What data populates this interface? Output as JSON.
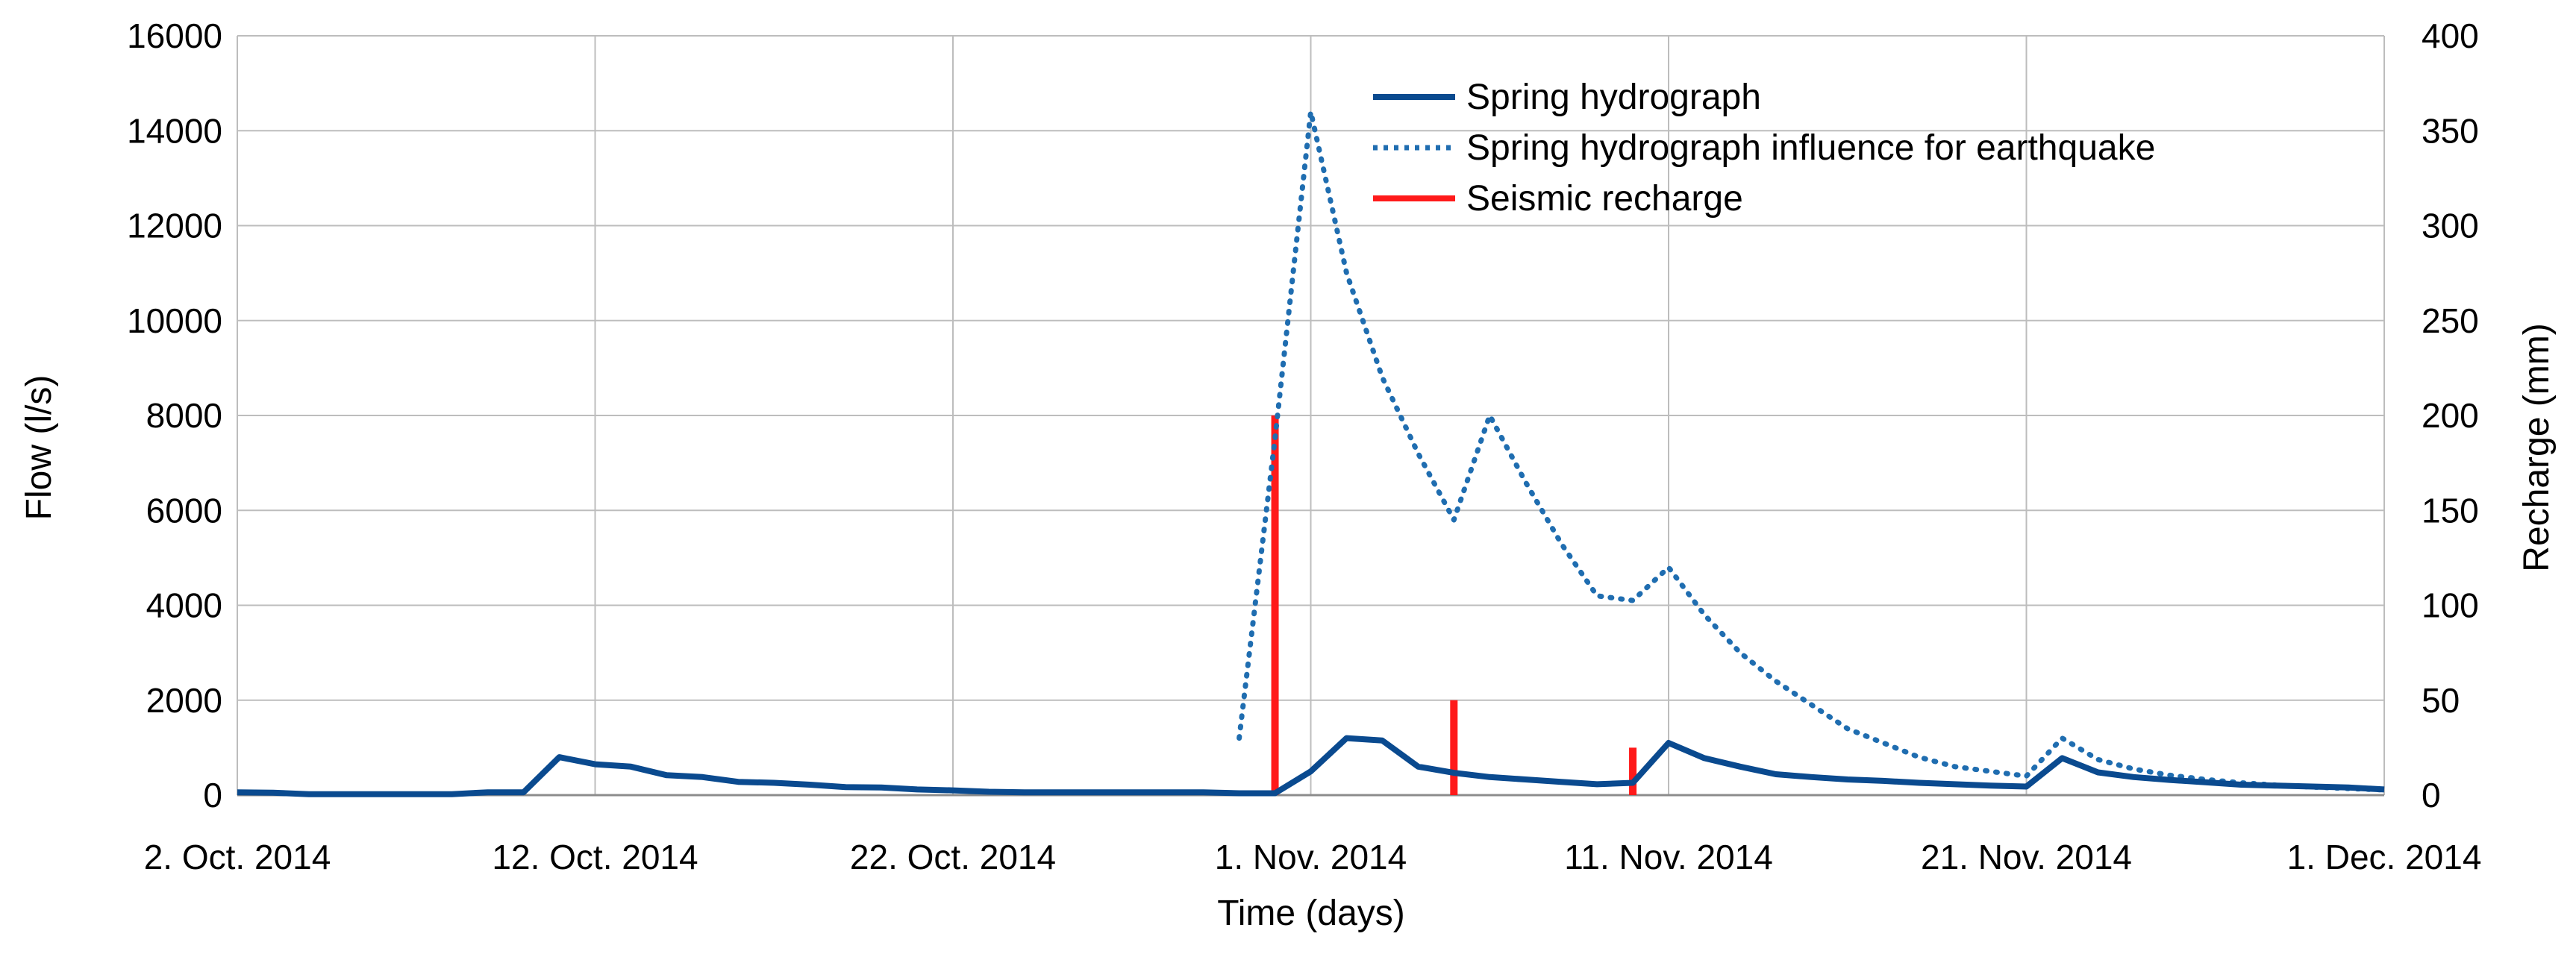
{
  "chart_data": {
    "type": "line",
    "title": "",
    "xlabel": "Time (days)",
    "ylabel": "Flow (l/s)",
    "y2label": "Recharge (mm)",
    "xlim": [
      "2014-10-02",
      "2014-12-01"
    ],
    "ylim": [
      0,
      16000
    ],
    "y2lim": [
      0,
      400
    ],
    "x_ticks": [
      "2014-10-02",
      "2014-10-12",
      "2014-10-22",
      "2014-11-01",
      "2014-11-11",
      "2014-11-21",
      "2014-12-01"
    ],
    "x_tick_labels": [
      "2. Oct. 2014",
      "12. Oct. 2014",
      "22. Oct. 2014",
      "1. Nov. 2014",
      "11. Nov. 2014",
      "21. Nov. 2014",
      "1. Dec. 2014"
    ],
    "y_ticks": [
      0,
      2000,
      4000,
      6000,
      8000,
      10000,
      12000,
      14000,
      16000
    ],
    "y2_ticks": [
      0,
      50,
      100,
      150,
      200,
      250,
      300,
      350,
      400
    ],
    "grid": true,
    "legend_position": "top-right",
    "series": [
      {
        "name": "Spring hydrograph",
        "axis": "left",
        "style": "solid",
        "color": "#0a4a8f",
        "x": [
          "2014-10-02",
          "2014-10-03",
          "2014-10-04",
          "2014-10-05",
          "2014-10-06",
          "2014-10-07",
          "2014-10-08",
          "2014-10-09",
          "2014-10-10",
          "2014-10-11",
          "2014-10-12",
          "2014-10-13",
          "2014-10-14",
          "2014-10-15",
          "2014-10-16",
          "2014-10-17",
          "2014-10-18",
          "2014-10-19",
          "2014-10-20",
          "2014-10-21",
          "2014-10-22",
          "2014-10-23",
          "2014-10-24",
          "2014-10-25",
          "2014-10-26",
          "2014-10-27",
          "2014-10-28",
          "2014-10-29",
          "2014-10-30",
          "2014-10-31",
          "2014-11-01",
          "2014-11-02",
          "2014-11-03",
          "2014-11-04",
          "2014-11-05",
          "2014-11-06",
          "2014-11-07",
          "2014-11-08",
          "2014-11-09",
          "2014-11-10",
          "2014-11-11",
          "2014-11-12",
          "2014-11-13",
          "2014-11-14",
          "2014-11-15",
          "2014-11-16",
          "2014-11-17",
          "2014-11-18",
          "2014-11-19",
          "2014-11-20",
          "2014-11-21",
          "2014-11-22",
          "2014-11-23",
          "2014-11-24",
          "2014-11-25",
          "2014-11-26",
          "2014-11-27",
          "2014-11-28",
          "2014-11-29",
          "2014-11-30",
          "2014-12-01"
        ],
        "values": [
          60,
          50,
          20,
          20,
          20,
          20,
          20,
          60,
          60,
          800,
          650,
          600,
          420,
          380,
          280,
          260,
          220,
          170,
          160,
          120,
          100,
          70,
          60,
          60,
          60,
          60,
          60,
          60,
          40,
          40,
          500,
          1200,
          1150,
          600,
          470,
          380,
          330,
          280,
          230,
          260,
          1100,
          780,
          600,
          440,
          380,
          330,
          300,
          260,
          230,
          200,
          180,
          780,
          480,
          380,
          320,
          270,
          220,
          200,
          180,
          160,
          120
        ]
      },
      {
        "name": "Spring hydrograph influence for earthquake",
        "axis": "left",
        "style": "dotted",
        "color": "#1f6db0",
        "x": [
          "2014-10-30",
          "2014-10-31",
          "2014-11-01",
          "2014-11-02",
          "2014-11-03",
          "2014-11-04",
          "2014-11-05",
          "2014-11-06",
          "2014-11-07",
          "2014-11-08",
          "2014-11-09",
          "2014-11-10",
          "2014-11-11",
          "2014-11-12",
          "2014-11-13",
          "2014-11-14",
          "2014-11-15",
          "2014-11-16",
          "2014-11-17",
          "2014-11-18",
          "2014-11-19",
          "2014-11-20",
          "2014-11-21",
          "2014-11-22",
          "2014-11-23",
          "2014-11-24",
          "2014-11-25",
          "2014-11-26",
          "2014-11-27",
          "2014-11-28",
          "2014-11-29",
          "2014-11-30",
          "2014-12-01"
        ],
        "values": [
          1200,
          7500,
          14400,
          11000,
          8800,
          7200,
          5800,
          8000,
          6600,
          5300,
          4200,
          4100,
          4800,
          3800,
          3000,
          2400,
          1900,
          1400,
          1100,
          800,
          600,
          500,
          400,
          1200,
          750,
          550,
          420,
          330,
          260,
          210,
          170,
          140,
          110
        ]
      }
    ],
    "bars": {
      "name": "Seismic recharge",
      "axis": "right",
      "color": "#ff1a1a",
      "x": [
        "2014-10-31",
        "2014-11-05",
        "2014-11-10"
      ],
      "values": [
        200,
        50,
        25
      ]
    }
  }
}
